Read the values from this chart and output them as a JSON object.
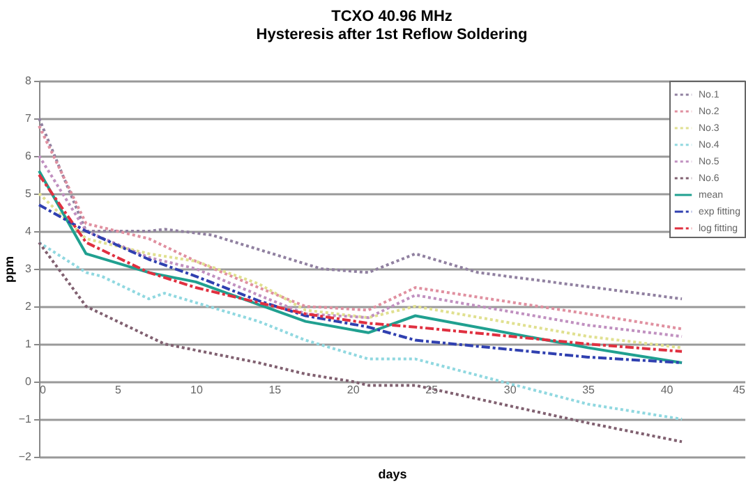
{
  "chart_data": {
    "type": "line",
    "title": "TCXO 40.96 MHz",
    "subtitle": "Hysteresis after 1st Reflow Soldering",
    "xlabel": "days",
    "ylabel": "ppm",
    "xlim": [
      0,
      45
    ],
    "xticks": [
      0,
      5,
      10,
      15,
      20,
      25,
      30,
      35,
      40,
      45
    ],
    "ylim": [
      -2,
      8
    ],
    "yticks": [
      -2,
      -1,
      0,
      1,
      2,
      3,
      4,
      5,
      6,
      7,
      8
    ],
    "grid": "y",
    "legend": "top right",
    "series": [
      {
        "name": "No.1",
        "color": "#9080a0",
        "line_style": "dotted",
        "x": [
          0,
          3,
          7,
          8,
          11,
          18,
          21,
          24,
          28,
          41
        ],
        "values": [
          7.0,
          4.0,
          4.0,
          4.05,
          3.9,
          3.0,
          2.9,
          3.4,
          2.9,
          2.2
        ]
      },
      {
        "name": "No.2",
        "color": "#e090a0",
        "line_style": "dotted",
        "x": [
          0,
          3,
          7,
          10,
          14,
          17,
          21,
          24,
          35,
          41
        ],
        "values": [
          6.8,
          4.2,
          3.8,
          3.2,
          2.5,
          2.0,
          1.9,
          2.5,
          1.8,
          1.4
        ]
      },
      {
        "name": "No.3",
        "color": "#e0e090",
        "line_style": "dotted",
        "x": [
          0,
          3,
          7,
          10,
          14,
          17,
          21,
          24,
          35,
          41
        ],
        "values": [
          5.0,
          3.8,
          3.4,
          3.2,
          2.6,
          1.9,
          1.7,
          2.0,
          1.2,
          0.9
        ]
      },
      {
        "name": "No.4",
        "color": "#90d8e0",
        "line_style": "dotted",
        "x": [
          0,
          3,
          4,
          7,
          8,
          14,
          17,
          21,
          24,
          35,
          41
        ],
        "values": [
          3.7,
          2.9,
          2.8,
          2.2,
          2.35,
          1.6,
          1.1,
          0.6,
          0.6,
          -0.6,
          -1.0
        ]
      },
      {
        "name": "No.5",
        "color": "#c090c0",
        "line_style": "dotted",
        "x": [
          0,
          3,
          7,
          10,
          14,
          17,
          21,
          24,
          35,
          41
        ],
        "values": [
          6.0,
          4.0,
          3.3,
          3.0,
          2.3,
          1.8,
          1.7,
          2.3,
          1.5,
          1.2
        ]
      },
      {
        "name": "No.6",
        "color": "#806070",
        "line_style": "dotted",
        "x": [
          0,
          3,
          7,
          8,
          14,
          17,
          20,
          21,
          24,
          35,
          41
        ],
        "values": [
          3.7,
          2.0,
          1.2,
          1.0,
          0.5,
          0.2,
          0.0,
          -0.1,
          -0.1,
          -1.1,
          -1.6
        ]
      },
      {
        "name": "mean",
        "color": "#20a090",
        "line_style": "solid",
        "x": [
          0,
          3,
          7,
          10,
          14,
          17,
          21,
          24,
          35,
          41
        ],
        "values": [
          5.6,
          3.4,
          2.9,
          2.65,
          2.05,
          1.6,
          1.3,
          1.75,
          0.9,
          0.5
        ]
      },
      {
        "name": "exp fitting",
        "color": "#3040b0",
        "line_style": "dashed",
        "x": [
          0,
          3,
          7,
          10,
          14,
          17,
          21,
          24,
          35,
          41
        ],
        "values": [
          4.7,
          4.0,
          3.25,
          2.8,
          2.15,
          1.75,
          1.45,
          1.1,
          0.65,
          0.5
        ]
      },
      {
        "name": "log fitting",
        "color": "#e03040",
        "line_style": "dashed",
        "x": [
          0,
          3,
          7,
          10,
          14,
          17,
          21,
          24,
          35,
          41
        ],
        "values": [
          5.5,
          3.7,
          2.9,
          2.5,
          2.1,
          1.8,
          1.55,
          1.45,
          1.0,
          0.8
        ]
      }
    ]
  }
}
